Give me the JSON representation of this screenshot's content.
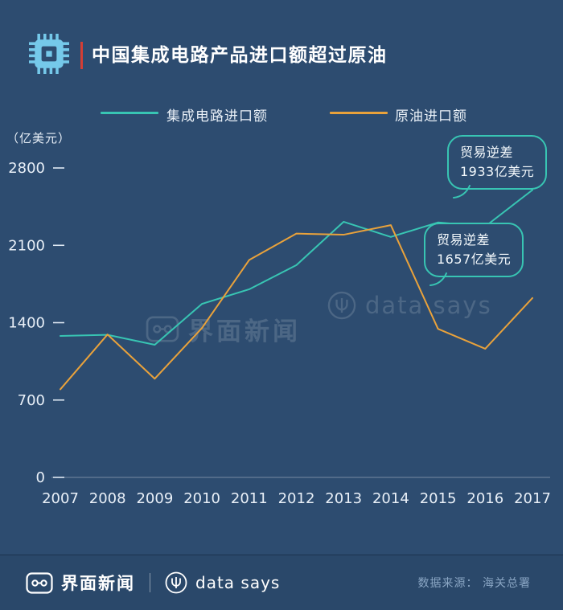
{
  "header": {
    "title": "中国集成电路产品进口额超过原油"
  },
  "chart_data": {
    "type": "line",
    "title": "中国集成电路产品进口额超过原油",
    "unit_label": "（亿美元）",
    "x": [
      2007,
      2008,
      2009,
      2010,
      2011,
      2012,
      2013,
      2014,
      2015,
      2016,
      2017
    ],
    "series": [
      {
        "name": "集成电路进口额",
        "color": "#38c5b3",
        "values": [
          1280,
          1290,
          1200,
          1570,
          1702,
          1921,
          2313,
          2176,
          2307,
          2271,
          2601
        ]
      },
      {
        "name": "原油进口额",
        "color": "#e9a23b",
        "values": [
          797,
          1293,
          893,
          1351,
          1967,
          2206,
          2196,
          2283,
          1344,
          1164,
          1623
        ]
      }
    ],
    "ylim": [
      0,
      2800
    ],
    "yticks": [
      0,
      700,
      1400,
      2100,
      2800
    ],
    "grid": false,
    "legend_position": "top",
    "annotations": [
      {
        "text": "贸易逆差\n1933亿美元"
      },
      {
        "text": "贸易逆差\n1657亿美元"
      }
    ]
  },
  "watermarks": {
    "jiemian": "界面新闻",
    "datasays": "data says"
  },
  "footer": {
    "brand1": "界面新闻",
    "brand2": "data says",
    "source": "数据来源： 海关总署"
  },
  "colors": {
    "background": "#2d4c70",
    "ic_line": "#38c5b3",
    "oil_line": "#e9a23b",
    "accent_red": "#d43e35",
    "chip_blue": "#75c9ea",
    "source_text": "#8aa6c4"
  }
}
